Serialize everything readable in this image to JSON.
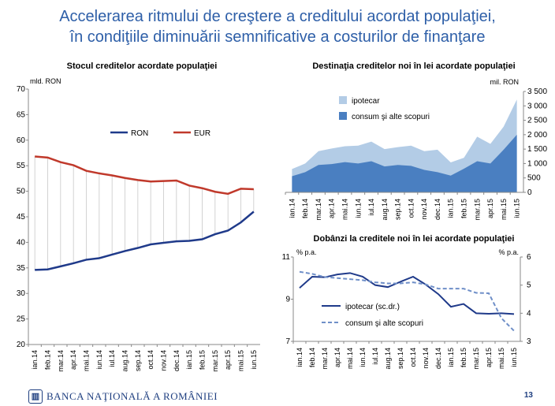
{
  "page": {
    "title_line1": "Accelerarea ritmului de creştere a creditului acordat populaţiei,",
    "title_line2": "în condiţiile diminuării semnificative a costurilor de finanţare",
    "bank_name": "BANCA NAŢIONALĂ A ROMÂNIEI",
    "page_number": "13",
    "colors": {
      "title": "#2e5fa8",
      "footer": "#1f3f80"
    }
  },
  "chart_data": [
    {
      "type": "line",
      "title": "Stocul creditelor acordate populaţiei",
      "ylabel": "mld. RON",
      "ylim": [
        20,
        70
      ],
      "yticks": [
        20,
        25,
        30,
        35,
        40,
        45,
        50,
        55,
        60,
        65,
        70
      ],
      "legend": "center",
      "drop_lines": true,
      "categories": [
        "ian.14",
        "feb.14",
        "mar.14",
        "apr.14",
        "mai.14",
        "iun.14",
        "iul.14",
        "aug.14",
        "sep.14",
        "oct.14",
        "nov.14",
        "dec.14",
        "ian.15",
        "feb.15",
        "mar.15",
        "apr.15",
        "mai.15",
        "iun.15"
      ],
      "series": [
        {
          "name": "RON",
          "color": "#1f3a8a",
          "values": [
            34.6,
            34.7,
            35.3,
            35.9,
            36.6,
            36.9,
            37.6,
            38.3,
            38.9,
            39.6,
            39.9,
            40.2,
            40.3,
            40.6,
            41.6,
            42.3,
            43.9,
            46.0
          ]
        },
        {
          "name": "EUR",
          "color": "#c0392b",
          "values": [
            56.8,
            56.6,
            55.7,
            55.1,
            54.0,
            53.5,
            53.1,
            52.6,
            52.2,
            51.9,
            52.0,
            52.1,
            51.1,
            50.6,
            49.9,
            49.5,
            50.5,
            50.4
          ]
        }
      ]
    },
    {
      "type": "area",
      "stacked": true,
      "title": "Destinaţia creditelor noi în lei acordate populaţiei",
      "ylabel": "mil. RON",
      "ylim": [
        0,
        3500
      ],
      "yticks": [
        0,
        500,
        1000,
        1500,
        2000,
        2500,
        3000,
        3500
      ],
      "y_axis_side": "right",
      "legend": "top-left",
      "categories": [
        "ian.14",
        "feb.14",
        "mar.14",
        "apr.14",
        "mai.14",
        "iun.14",
        "iul.14",
        "aug.14",
        "sep.14",
        "oct.14",
        "nov.14",
        "dec.14",
        "ian.15",
        "feb.15",
        "mar.15",
        "apr.15",
        "mai.15",
        "iun.15"
      ],
      "series": [
        {
          "name": "consum şi alte scopuri",
          "color": "#4a7fc1",
          "values": [
            560,
            700,
            950,
            980,
            1050,
            1000,
            1080,
            900,
            950,
            920,
            780,
            700,
            580,
            820,
            1080,
            1000,
            1480,
            2000
          ]
        },
        {
          "name": "ipotecar",
          "color": "#b3cce6",
          "values": [
            250,
            300,
            480,
            540,
            550,
            620,
            680,
            600,
            620,
            700,
            650,
            780,
            460,
            380,
            850,
            680,
            800,
            1220
          ]
        }
      ]
    },
    {
      "type": "line",
      "title": "Dobânzi la creditele noi în lei acordate populaţiei",
      "ylabel_left": "% p.a.",
      "ylabel_right": "% p.a.",
      "ylim_left": [
        7,
        11
      ],
      "yticks_left": [
        7,
        9,
        11
      ],
      "ylim_right": [
        3,
        6
      ],
      "yticks_right": [
        3,
        4,
        5,
        6
      ],
      "legend": "bottom-center",
      "categories": [
        "ian.14",
        "feb.14",
        "mar.14",
        "apr.14",
        "mai.14",
        "iun.14",
        "iul.14",
        "aug.14",
        "sep.14",
        "oct.14",
        "nov.14",
        "dec.14",
        "ian.15",
        "feb.15",
        "mar.15",
        "apr.15",
        "mai.15",
        "iun.15"
      ],
      "series": [
        {
          "name": "ipotecar (sc.dr.)",
          "axis": "right",
          "color": "#1f3a8a",
          "dash": false,
          "values": [
            4.9,
            5.3,
            5.28,
            5.38,
            5.43,
            5.3,
            5.0,
            4.93,
            5.12,
            5.3,
            5.02,
            4.68,
            4.23,
            4.33,
            4.0,
            3.98,
            4.0,
            3.97
          ]
        },
        {
          "name": "consum şi alte scopuri",
          "axis": "left",
          "color": "#6f8fc8",
          "dash": true,
          "values": [
            10.3,
            10.2,
            10.05,
            10.0,
            9.95,
            9.9,
            9.8,
            9.75,
            9.75,
            9.8,
            9.7,
            9.5,
            9.5,
            9.5,
            9.3,
            9.28,
            8.1,
            7.5
          ]
        }
      ]
    }
  ]
}
